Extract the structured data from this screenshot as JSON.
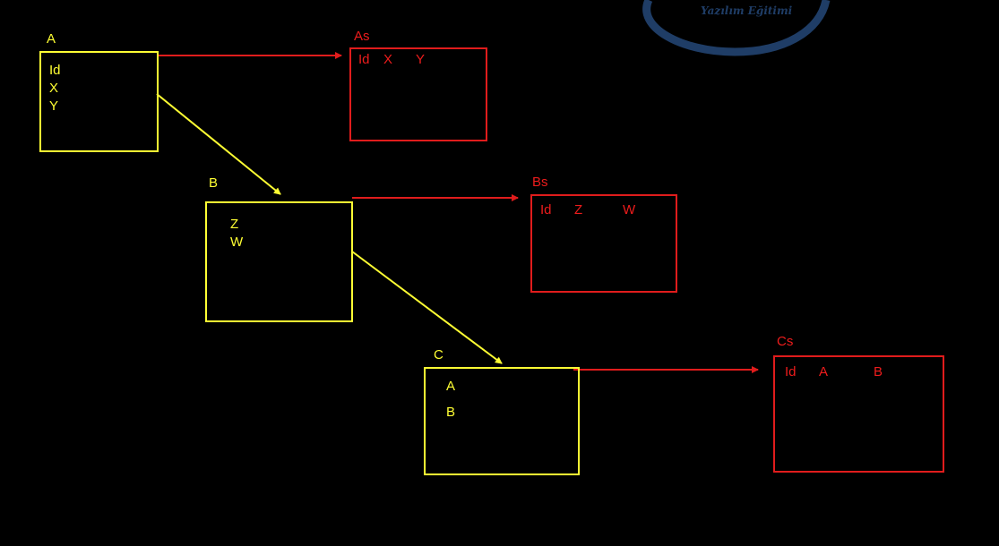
{
  "logo": {
    "text": "Yazılım Eğitimi"
  },
  "entities": {
    "A": {
      "title": "A",
      "fields": [
        "Id",
        "X",
        "Y"
      ]
    },
    "B": {
      "title": "B",
      "fields": [
        "Z",
        "W"
      ]
    },
    "C": {
      "title": "C",
      "fields": [
        "A",
        "B"
      ]
    },
    "As": {
      "title": "As",
      "fields": [
        "Id",
        "X",
        "Y"
      ]
    },
    "Bs": {
      "title": "Bs",
      "fields": [
        "Id",
        "Z",
        "W"
      ]
    },
    "Cs": {
      "title": "Cs",
      "fields": [
        "Id",
        "A",
        "B"
      ]
    }
  },
  "colors": {
    "class": "#ffff33",
    "table": "#e01c1c",
    "logo": "#1f3d66"
  }
}
